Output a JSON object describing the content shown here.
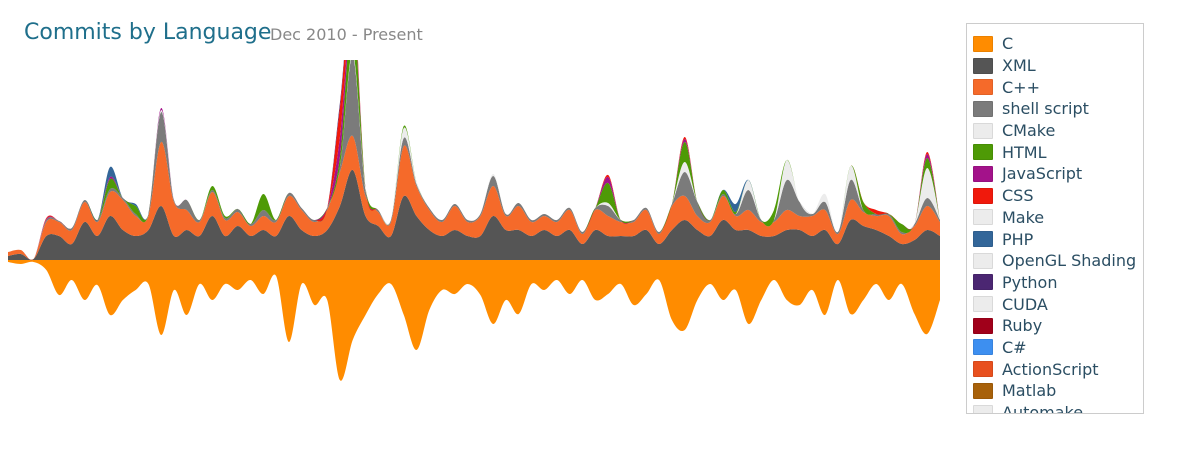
{
  "header": {
    "title": "Commits by Language",
    "subtitle": "Dec 2010 - Present"
  },
  "chart_data": {
    "type": "area",
    "title": "Commits by Language",
    "subtitle": "Dec 2010 - Present",
    "layout": "streamgraph",
    "legend_placement": "right",
    "grid": false,
    "series": [
      {
        "name": "C",
        "color": "#ff8c00",
        "values": [
          2,
          4,
          2,
          10,
          35,
          20,
          40,
          25,
          55,
          40,
          30,
          24,
          75,
          30,
          55,
          24,
          40,
          24,
          30,
          20,
          34,
          16,
          82,
          24,
          45,
          40,
          120,
          80,
          55,
          34,
          24,
          55,
          90,
          50,
          30,
          34,
          24,
          35,
          64,
          40,
          54,
          24,
          30,
          20,
          34,
          20,
          40,
          34,
          24,
          45,
          34,
          20,
          60,
          70,
          40,
          24,
          40,
          30,
          64,
          40,
          20,
          40,
          45,
          30,
          55,
          20,
          54,
          40,
          24,
          40,
          24,
          54,
          74,
          40
        ]
      },
      {
        "name": "XML",
        "color": "#555555",
        "values": [
          4,
          6,
          1,
          24,
          24,
          16,
          38,
          24,
          44,
          30,
          24,
          30,
          54,
          24,
          30,
          24,
          44,
          24,
          34,
          24,
          30,
          24,
          44,
          30,
          24,
          30,
          54,
          90,
          44,
          34,
          24,
          64,
          44,
          30,
          24,
          30,
          24,
          24,
          44,
          30,
          30,
          24,
          30,
          24,
          30,
          16,
          30,
          24,
          24,
          24,
          30,
          16,
          30,
          40,
          30,
          24,
          40,
          30,
          30,
          24,
          24,
          30,
          30,
          24,
          30,
          16,
          40,
          34,
          30,
          24,
          16,
          20,
          30,
          24
        ]
      },
      {
        "name": "C++",
        "color": "#f56a2a",
        "values": [
          4,
          4,
          0,
          14,
          14,
          14,
          20,
          14,
          24,
          30,
          20,
          14,
          64,
          34,
          20,
          14,
          24,
          16,
          14,
          10,
          14,
          14,
          20,
          20,
          14,
          20,
          34,
          34,
          20,
          14,
          14,
          50,
          30,
          20,
          14,
          24,
          14,
          20,
          30,
          14,
          24,
          14,
          14,
          14,
          20,
          10,
          20,
          20,
          14,
          14,
          20,
          10,
          24,
          24,
          14,
          14,
          24,
          14,
          20,
          14,
          14,
          20,
          14,
          20,
          20,
          10,
          20,
          14,
          14,
          20,
          10,
          14,
          24,
          14
        ]
      },
      {
        "name": "shell script",
        "color": "#7b7b7b",
        "values": [
          0,
          0,
          0,
          2,
          1,
          2,
          2,
          2,
          3,
          2,
          2,
          2,
          30,
          2,
          10,
          2,
          2,
          2,
          3,
          2,
          6,
          2,
          3,
          2,
          2,
          2,
          5,
          80,
          6,
          2,
          2,
          8,
          2,
          2,
          2,
          2,
          2,
          2,
          10,
          2,
          3,
          2,
          2,
          2,
          2,
          2,
          2,
          10,
          2,
          2,
          2,
          2,
          2,
          24,
          14,
          2,
          2,
          2,
          20,
          2,
          2,
          30,
          14,
          2,
          8,
          2,
          20,
          2,
          2,
          2,
          2,
          2,
          8,
          2
        ]
      },
      {
        "name": "CMake",
        "color": "#ececec",
        "values": [
          0,
          0,
          0,
          0,
          0,
          0,
          0,
          0,
          0,
          0,
          0,
          0,
          2,
          0,
          0,
          0,
          0,
          0,
          0,
          0,
          0,
          0,
          0,
          0,
          0,
          0,
          0,
          3,
          2,
          0,
          0,
          10,
          2,
          0,
          0,
          0,
          0,
          0,
          2,
          0,
          0,
          0,
          0,
          0,
          0,
          0,
          0,
          3,
          0,
          0,
          0,
          0,
          0,
          10,
          0,
          0,
          0,
          0,
          10,
          0,
          0,
          20,
          0,
          0,
          8,
          0,
          14,
          0,
          0,
          0,
          0,
          0,
          30,
          0
        ]
      },
      {
        "name": "HTML",
        "color": "#4e9a06",
        "values": [
          0,
          0,
          0,
          0,
          0,
          0,
          0,
          0,
          10,
          0,
          8,
          0,
          0,
          0,
          0,
          0,
          4,
          2,
          0,
          0,
          16,
          0,
          0,
          0,
          0,
          0,
          10,
          40,
          0,
          0,
          0,
          2,
          0,
          0,
          0,
          0,
          0,
          0,
          0,
          0,
          0,
          0,
          0,
          0,
          0,
          0,
          0,
          20,
          0,
          0,
          0,
          0,
          0,
          20,
          0,
          0,
          4,
          2,
          0,
          0,
          10,
          0,
          0,
          0,
          0,
          0,
          0,
          8,
          0,
          0,
          8,
          0,
          10,
          0
        ]
      },
      {
        "name": "JavaScript",
        "color": "#a3128a",
        "values": [
          0,
          0,
          0,
          1,
          0,
          0,
          0,
          0,
          2,
          0,
          0,
          0,
          2,
          0,
          0,
          0,
          0,
          0,
          0,
          0,
          0,
          0,
          0,
          0,
          0,
          0,
          20,
          10,
          0,
          0,
          0,
          0,
          0,
          0,
          0,
          0,
          0,
          0,
          0,
          0,
          0,
          0,
          0,
          0,
          0,
          0,
          0,
          6,
          0,
          0,
          0,
          0,
          0,
          3,
          0,
          0,
          0,
          0,
          0,
          0,
          0,
          0,
          0,
          0,
          0,
          0,
          0,
          0,
          0,
          0,
          0,
          0,
          4,
          0
        ]
      },
      {
        "name": "CSS",
        "color": "#f0190c",
        "values": [
          0,
          0,
          0,
          1,
          0,
          0,
          0,
          0,
          0,
          0,
          0,
          0,
          0,
          0,
          0,
          0,
          0,
          0,
          0,
          0,
          0,
          0,
          0,
          0,
          0,
          0,
          30,
          10,
          0,
          0,
          0,
          0,
          0,
          0,
          0,
          0,
          0,
          0,
          0,
          0,
          0,
          0,
          0,
          0,
          0,
          0,
          0,
          2,
          0,
          0,
          0,
          0,
          0,
          2,
          0,
          0,
          0,
          0,
          0,
          0,
          0,
          0,
          0,
          0,
          0,
          0,
          0,
          0,
          4,
          0,
          0,
          0,
          2,
          0
        ]
      },
      {
        "name": "Make",
        "color": "#ececec",
        "values": []
      },
      {
        "name": "PHP",
        "color": "#336699",
        "values": [
          0,
          0,
          0,
          0,
          0,
          0,
          0,
          0,
          10,
          0,
          2,
          0,
          0,
          0,
          0,
          0,
          0,
          0,
          0,
          0,
          0,
          0,
          0,
          0,
          0,
          0,
          0,
          0,
          0,
          0,
          0,
          0,
          0,
          0,
          0,
          0,
          0,
          0,
          0,
          0,
          0,
          0,
          0,
          0,
          0,
          0,
          0,
          0,
          0,
          0,
          0,
          0,
          0,
          0,
          0,
          0,
          0,
          8,
          0,
          0,
          0,
          0,
          0,
          0,
          0,
          0,
          0,
          0,
          0,
          0,
          0,
          0,
          0,
          0
        ]
      },
      {
        "name": "OpenGL Shading",
        "color": "#ececec",
        "values": []
      },
      {
        "name": "Python",
        "color": "#4b2672",
        "values": [
          0,
          0,
          0,
          0,
          0,
          0,
          0,
          0,
          0,
          0,
          0,
          0,
          0,
          0,
          0,
          0,
          0,
          0,
          0,
          0,
          0,
          0,
          0,
          0,
          0,
          0,
          4,
          0,
          0,
          0,
          0,
          0,
          0,
          0,
          0,
          0,
          0,
          0,
          0,
          0,
          0,
          0,
          0,
          0,
          0,
          0,
          0,
          0,
          0,
          0,
          0,
          0,
          0,
          0,
          0,
          0,
          0,
          0,
          0,
          0,
          0,
          0,
          0,
          0,
          0,
          0,
          0,
          0,
          0,
          0,
          0,
          0,
          0,
          0
        ]
      },
      {
        "name": "CUDA",
        "color": "#ececec",
        "values": []
      },
      {
        "name": "Ruby",
        "color": "#a0001a",
        "values": []
      },
      {
        "name": "C#",
        "color": "#3d8ff0",
        "values": []
      },
      {
        "name": "ActionScript",
        "color": "#e8501e",
        "values": []
      },
      {
        "name": "Matlab",
        "color": "#a8610a",
        "values": []
      },
      {
        "name": "Automake",
        "color": "#ececec",
        "values": []
      }
    ]
  }
}
